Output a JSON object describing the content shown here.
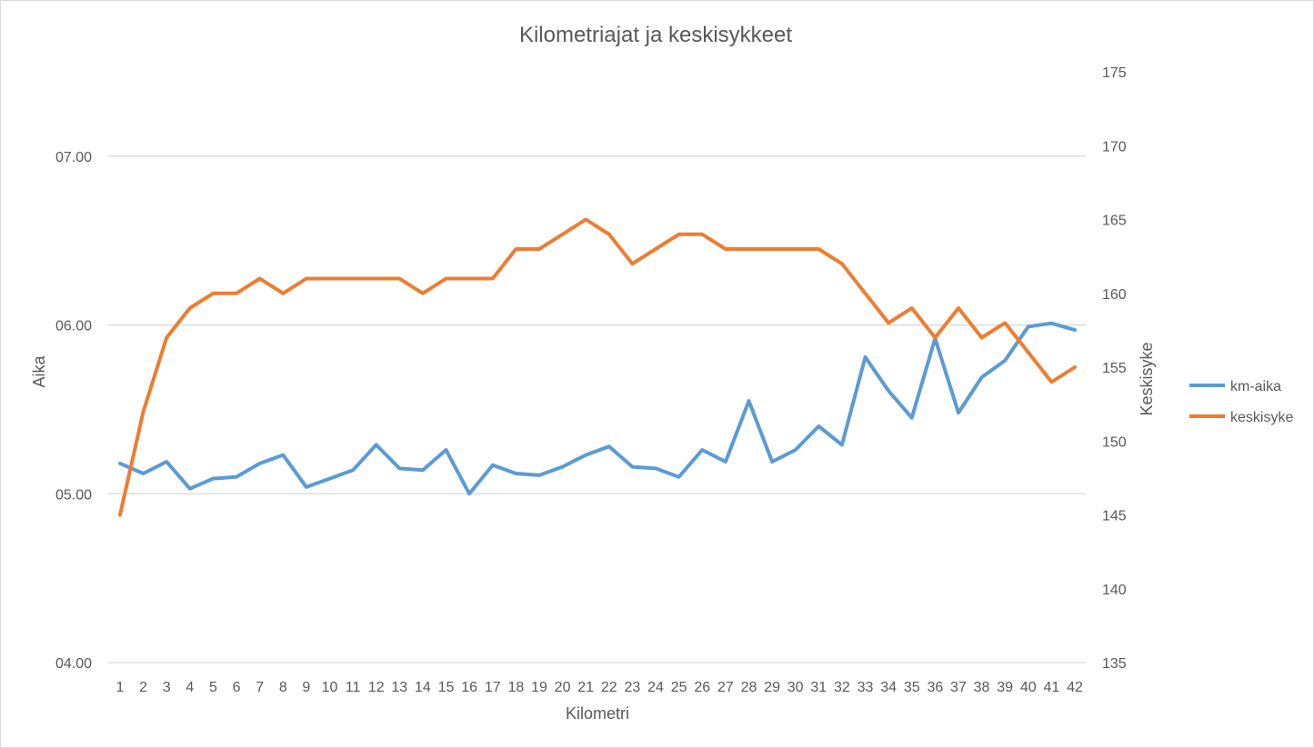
{
  "chart_data": {
    "type": "line",
    "title": "Kilometriajat ja keskisykkeet",
    "xlabel": "Kilometri",
    "ylabel_left": "Aika",
    "ylabel_right": "Keskisyke",
    "categories": [
      "1",
      "2",
      "3",
      "4",
      "5",
      "6",
      "7",
      "8",
      "9",
      "10",
      "11",
      "12",
      "13",
      "14",
      "15",
      "16",
      "17",
      "18",
      "19",
      "20",
      "21",
      "22",
      "23",
      "24",
      "25",
      "26",
      "27",
      "28",
      "29",
      "30",
      "31",
      "32",
      "33",
      "34",
      "35",
      "36",
      "37",
      "38",
      "39",
      "40",
      "41",
      "42"
    ],
    "left_axis": {
      "min_minutes": 4,
      "max_minutes": 7.5,
      "tick_labels": [
        "04.00",
        "05.00",
        "06.00",
        "07.00"
      ],
      "tick_values_minutes": [
        4,
        5,
        6,
        7
      ]
    },
    "right_axis": {
      "min": 135,
      "max": 175,
      "tick_labels": [
        "135",
        "140",
        "145",
        "150",
        "155",
        "160",
        "165",
        "170",
        "175"
      ],
      "tick_values": [
        135,
        140,
        145,
        150,
        155,
        160,
        165,
        170,
        175
      ]
    },
    "grid": true,
    "legend_position": "right",
    "series": [
      {
        "name": "km-aika",
        "axis": "left",
        "color": "#5b9bd5",
        "values_minutes": [
          5.18,
          5.12,
          5.19,
          5.03,
          5.09,
          5.1,
          5.18,
          5.23,
          5.04,
          5.09,
          5.14,
          5.29,
          5.15,
          5.14,
          5.26,
          5.0,
          5.17,
          5.12,
          5.11,
          5.16,
          5.23,
          5.28,
          5.16,
          5.15,
          5.1,
          5.26,
          5.19,
          5.55,
          5.19,
          5.26,
          5.4,
          5.29,
          5.81,
          5.61,
          5.45,
          5.92,
          5.48,
          5.69,
          5.79,
          5.99,
          6.01,
          5.97
        ]
      },
      {
        "name": "keskisyke",
        "axis": "right",
        "color": "#ed7d31",
        "values": [
          145,
          152,
          157,
          159,
          160,
          160,
          161,
          160,
          161,
          161,
          161,
          161,
          161,
          160,
          161,
          161,
          161,
          163,
          163,
          164,
          165,
          164,
          162,
          163,
          164,
          164,
          163,
          163,
          163,
          163,
          163,
          162,
          160,
          158,
          159,
          157,
          159,
          157,
          158,
          156,
          154,
          155
        ]
      }
    ]
  }
}
